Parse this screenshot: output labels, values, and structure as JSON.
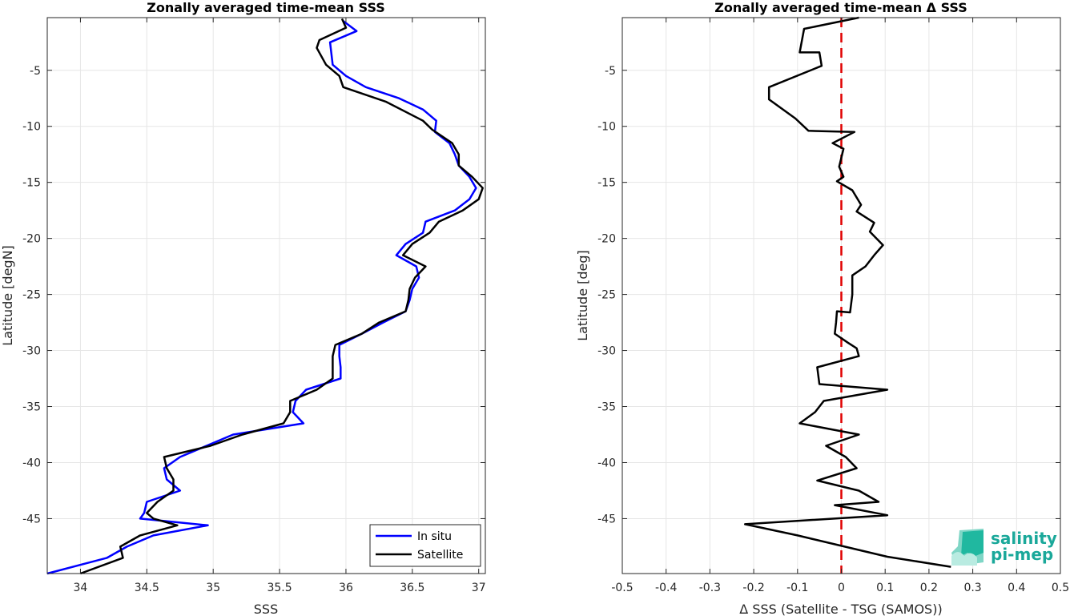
{
  "colors": {
    "in_situ": "#0000ff",
    "satellite": "#000000",
    "zero_line": "#e00000",
    "logo_text": "#1aa89a",
    "logo_shape": "#20b8a0"
  },
  "logo": {
    "line1": "salinity",
    "line2": "pi-mep",
    "icon": "salinity-pimep-logo-icon"
  },
  "chart_data": [
    {
      "type": "line",
      "title": "Zonally averaged time-mean SSS",
      "xlabel": "SSS",
      "ylabel": "Latitude [degN]",
      "xlim": [
        33.75,
        37.05
      ],
      "ylim": [
        -49.9,
        -0.3
      ],
      "xticks": [
        34,
        34.5,
        35,
        35.5,
        36,
        36.5,
        37
      ],
      "xtick_labels": [
        "34",
        "34.5",
        "35",
        "35.5",
        "36",
        "36.5",
        "37"
      ],
      "yticks": [
        -5,
        -10,
        -15,
        -20,
        -25,
        -30,
        -35,
        -40,
        -45
      ],
      "ytick_labels": [
        "-5",
        "-10",
        "-15",
        "-20",
        "-25",
        "-30",
        "-35",
        "-40",
        "-45"
      ],
      "grid": true,
      "legend_position": "bottom-right",
      "series": [
        {
          "name": "In situ",
          "color_key": "in_situ",
          "points": [
            [
              35.98,
              -0.6
            ],
            [
              36.08,
              -1.5
            ],
            [
              35.88,
              -2.5
            ],
            [
              35.9,
              -4.5
            ],
            [
              36.0,
              -5.5
            ],
            [
              36.15,
              -6.5
            ],
            [
              36.4,
              -7.5
            ],
            [
              36.58,
              -8.5
            ],
            [
              36.68,
              -9.5
            ],
            [
              36.67,
              -10.5
            ],
            [
              36.78,
              -11.5
            ],
            [
              36.82,
              -12.5
            ],
            [
              36.85,
              -13.5
            ],
            [
              36.93,
              -14.5
            ],
            [
              36.98,
              -15.5
            ],
            [
              36.93,
              -16.5
            ],
            [
              36.82,
              -17.5
            ],
            [
              36.6,
              -18.5
            ],
            [
              36.58,
              -19.5
            ],
            [
              36.45,
              -20.5
            ],
            [
              36.38,
              -21.5
            ],
            [
              36.53,
              -22.5
            ],
            [
              36.55,
              -23.5
            ],
            [
              36.5,
              -24.5
            ],
            [
              36.48,
              -25.5
            ],
            [
              36.45,
              -26.5
            ],
            [
              36.28,
              -27.5
            ],
            [
              36.12,
              -28.5
            ],
            [
              35.95,
              -29.5
            ],
            [
              35.95,
              -30.5
            ],
            [
              35.96,
              -31.5
            ],
            [
              35.96,
              -32.5
            ],
            [
              35.7,
              -33.5
            ],
            [
              35.62,
              -34.5
            ],
            [
              35.6,
              -35.5
            ],
            [
              35.68,
              -36.5
            ],
            [
              35.15,
              -37.5
            ],
            [
              34.95,
              -38.5
            ],
            [
              34.75,
              -39.5
            ],
            [
              34.63,
              -40.5
            ],
            [
              34.65,
              -41.5
            ],
            [
              34.75,
              -42.5
            ],
            [
              34.5,
              -43.5
            ],
            [
              34.48,
              -44.5
            ],
            [
              34.45,
              -45
            ],
            [
              34.96,
              -45.6
            ],
            [
              34.55,
              -46.5
            ],
            [
              34.35,
              -47.5
            ],
            [
              34.2,
              -48.5
            ],
            [
              33.75,
              -49.9
            ]
          ]
        },
        {
          "name": "Satellite",
          "color_key": "satellite",
          "points": [
            [
              35.97,
              -0.4
            ],
            [
              36.0,
              -1.2
            ],
            [
              35.8,
              -2.3
            ],
            [
              35.78,
              -3.0
            ],
            [
              35.85,
              -4.5
            ],
            [
              35.95,
              -5.5
            ],
            [
              35.98,
              -6.5
            ],
            [
              36.3,
              -7.8
            ],
            [
              36.58,
              -9.5
            ],
            [
              36.65,
              -10.3
            ],
            [
              36.8,
              -11.5
            ],
            [
              36.85,
              -12.5
            ],
            [
              36.85,
              -13.5
            ],
            [
              36.95,
              -14.5
            ],
            [
              37.03,
              -15.5
            ],
            [
              37.0,
              -16.5
            ],
            [
              36.88,
              -17.5
            ],
            [
              36.7,
              -18.5
            ],
            [
              36.63,
              -19.5
            ],
            [
              36.5,
              -20.5
            ],
            [
              36.43,
              -21.5
            ],
            [
              36.6,
              -22.5
            ],
            [
              36.52,
              -23.5
            ],
            [
              36.48,
              -24.5
            ],
            [
              36.47,
              -25.5
            ],
            [
              36.45,
              -26.5
            ],
            [
              36.25,
              -27.5
            ],
            [
              36.12,
              -28.5
            ],
            [
              35.92,
              -29.5
            ],
            [
              35.9,
              -30.5
            ],
            [
              35.9,
              -31.5
            ],
            [
              35.9,
              -32.5
            ],
            [
              35.78,
              -33.5
            ],
            [
              35.58,
              -34.5
            ],
            [
              35.58,
              -35.5
            ],
            [
              35.53,
              -36.5
            ],
            [
              35.22,
              -37.5
            ],
            [
              34.98,
              -38.5
            ],
            [
              34.63,
              -39.5
            ],
            [
              34.65,
              -40.5
            ],
            [
              34.7,
              -41.5
            ],
            [
              34.7,
              -42.5
            ],
            [
              34.58,
              -43.5
            ],
            [
              34.5,
              -44.5
            ],
            [
              34.55,
              -45
            ],
            [
              34.73,
              -45.6
            ],
            [
              34.45,
              -46.5
            ],
            [
              34.3,
              -47.5
            ],
            [
              34.32,
              -48.5
            ],
            [
              34.0,
              -49.9
            ]
          ]
        }
      ]
    },
    {
      "type": "line",
      "title": "Zonally averaged time-mean Δ SSS",
      "xlabel": "Δ SSS (Satellite - TSG (SAMOS))",
      "ylabel": "Latitude [deg]",
      "xlim": [
        -0.5,
        0.5
      ],
      "ylim": [
        -49.9,
        -0.3
      ],
      "xticks": [
        -0.5,
        -0.4,
        -0.3,
        -0.2,
        -0.1,
        0,
        0.1,
        0.2,
        0.3,
        0.4,
        0.5
      ],
      "xtick_labels": [
        "-0.5",
        "-0.4",
        "-0.3",
        "-0.2",
        "-0.1",
        "0",
        "0.1",
        "0.2",
        "0.3",
        "0.4",
        "0.5"
      ],
      "yticks": [
        -5,
        -10,
        -15,
        -20,
        -25,
        -30,
        -35,
        -40,
        -45
      ],
      "ytick_labels": [
        "-5",
        "-10",
        "-15",
        "-20",
        "-25",
        "-30",
        "-35",
        "-40",
        "-45"
      ],
      "grid": true,
      "reference_line": {
        "x": 0,
        "style": "dashed",
        "color_key": "zero_line"
      },
      "series": [
        {
          "color_key": "satellite",
          "points": [
            [
              0.04,
              -0.3
            ],
            [
              -0.085,
              -1.3
            ],
            [
              -0.095,
              -3.4
            ],
            [
              -0.05,
              -3.4
            ],
            [
              -0.045,
              -4.6
            ],
            [
              -0.165,
              -6.5
            ],
            [
              -0.165,
              -7.6
            ],
            [
              -0.105,
              -9.3
            ],
            [
              -0.075,
              -10.4
            ],
            [
              0.03,
              -10.5
            ],
            [
              -0.02,
              -11.5
            ],
            [
              0.005,
              -12.0
            ],
            [
              -0.005,
              -13.6
            ],
            [
              0.005,
              -14.5
            ],
            [
              -0.01,
              -14.9
            ],
            [
              0.025,
              -15.7
            ],
            [
              0.045,
              -17.0
            ],
            [
              0.035,
              -17.6
            ],
            [
              0.075,
              -18.6
            ],
            [
              0.065,
              -19.4
            ],
            [
              0.095,
              -20.6
            ],
            [
              0.075,
              -21.5
            ],
            [
              0.055,
              -22.5
            ],
            [
              0.025,
              -23.3
            ],
            [
              0.025,
              -25.0
            ],
            [
              0.02,
              -26.6
            ],
            [
              -0.01,
              -26.5
            ],
            [
              -0.012,
              -27.5
            ],
            [
              -0.015,
              -28.5
            ],
            [
              0.015,
              -29.3
            ],
            [
              0.035,
              -29.8
            ],
            [
              0.04,
              -30.5
            ],
            [
              -0.055,
              -31.5
            ],
            [
              -0.05,
              -33.0
            ],
            [
              0.105,
              -33.5
            ],
            [
              -0.04,
              -34.5
            ],
            [
              -0.06,
              -35.5
            ],
            [
              -0.095,
              -36.5
            ],
            [
              0.04,
              -37.5
            ],
            [
              -0.035,
              -38.5
            ],
            [
              0.01,
              -39.5
            ],
            [
              0.035,
              -40.5
            ],
            [
              -0.055,
              -41.6
            ],
            [
              0.04,
              -42.5
            ],
            [
              0.085,
              -43.5
            ],
            [
              -0.015,
              -43.8
            ],
            [
              0.105,
              -44.7
            ],
            [
              -0.22,
              -45.5
            ],
            [
              -0.1,
              -46.5
            ],
            [
              0.105,
              -48.4
            ],
            [
              0.25,
              -49.3
            ]
          ]
        }
      ]
    }
  ]
}
